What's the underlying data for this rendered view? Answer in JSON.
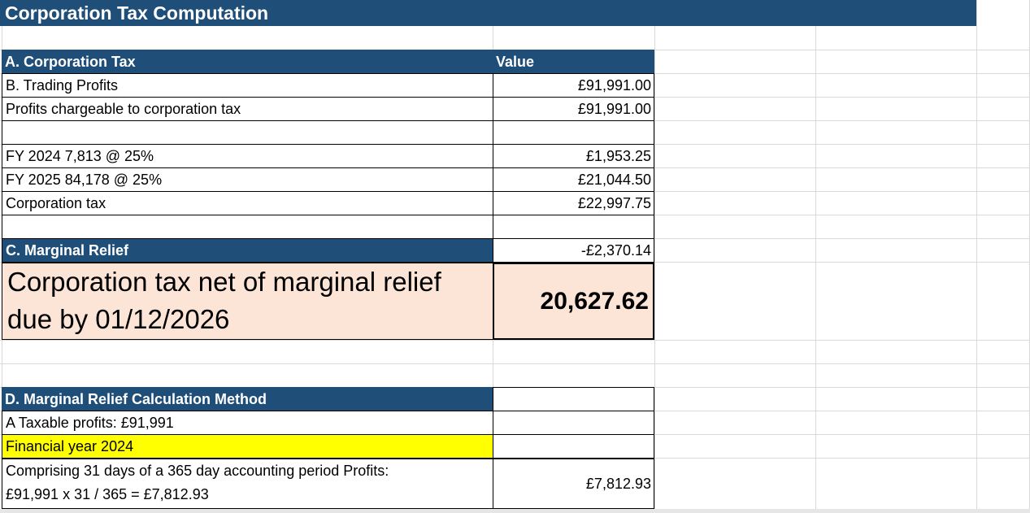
{
  "title": "Corporation Tax Computation",
  "section_a": {
    "label": "A. Corporation Tax",
    "value_header": "Value"
  },
  "rows": {
    "trading_profits": {
      "label": "B. Trading Profits",
      "value": "£91,991.00"
    },
    "chargeable": {
      "label": "Profits chargeable to corporation tax",
      "value": "£91,991.00"
    },
    "fy2024": {
      "label": "FY 2024  7,813 @ 25%",
      "value": "£1,953.25"
    },
    "fy2025": {
      "label": "FY 2025 84,178 @ 25%",
      "value": "£21,044.50"
    },
    "corp_tax": {
      "label": "Corporation tax",
      "value": "£22,997.75"
    }
  },
  "section_c": {
    "label": "C. Marginal Relief",
    "value": "-£2,370.14"
  },
  "net_tax": {
    "line1": "Corporation tax net of marginal relief",
    "line2": "due by 01/12/2026",
    "value": "20,627.62"
  },
  "section_d": {
    "label": "D. Marginal Relief Calculation Method"
  },
  "method": {
    "taxable_profits": "A Taxable profits: £91,991",
    "financial_year": "Financial year 2024",
    "comprising_line1": "Comprising 31 days of a 365 day accounting period Profits:",
    "comprising_line2": "£91,991 x 31 / 365 = £7,812.93",
    "comprising_value": "£7,812.93"
  },
  "colors": {
    "header_navy": "#1f4e79",
    "highlight_peach": "#fce4d6",
    "highlight_yellow": "#ffff00"
  }
}
